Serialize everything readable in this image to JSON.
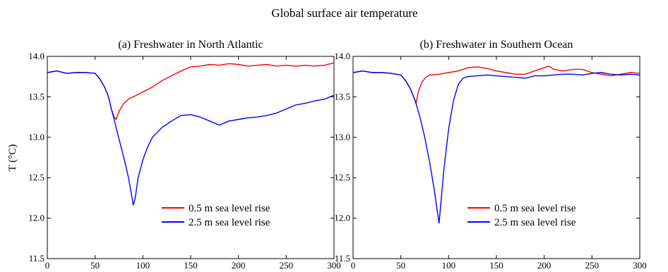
{
  "figure": {
    "title": "Global surface air temperature",
    "ylabel": "T (°C)"
  },
  "chart_data": [
    {
      "type": "line",
      "title": "(a) Freshwater in North Atlantic",
      "xlim": [
        0,
        300
      ],
      "ylim": [
        11.5,
        14.0
      ],
      "xticks": [
        0,
        50,
        100,
        150,
        200,
        250,
        300
      ],
      "yticks": [
        11.5,
        12.0,
        12.5,
        13.0,
        13.5,
        14.0
      ],
      "ytick_labels": [
        "11.5",
        "12.0",
        "12.5",
        "13.0",
        "13.5",
        "14.0"
      ],
      "legend_position": "lower-right",
      "series": [
        {
          "name": "0.5 m sea level rise",
          "color": "#ff0000",
          "points": [
            [
              0,
              13.8
            ],
            [
              10,
              13.82
            ],
            [
              20,
              13.79
            ],
            [
              30,
              13.8
            ],
            [
              40,
              13.8
            ],
            [
              50,
              13.79
            ],
            [
              55,
              13.72
            ],
            [
              60,
              13.62
            ],
            [
              64,
              13.5
            ],
            [
              67,
              13.35
            ],
            [
              70,
              13.25
            ],
            [
              72,
              13.22
            ],
            [
              75,
              13.32
            ],
            [
              80,
              13.42
            ],
            [
              85,
              13.47
            ],
            [
              90,
              13.5
            ],
            [
              95,
              13.53
            ],
            [
              100,
              13.56
            ],
            [
              110,
              13.62
            ],
            [
              120,
              13.7
            ],
            [
              130,
              13.76
            ],
            [
              140,
              13.82
            ],
            [
              150,
              13.87
            ],
            [
              160,
              13.88
            ],
            [
              170,
              13.9
            ],
            [
              180,
              13.89
            ],
            [
              190,
              13.91
            ],
            [
              200,
              13.9
            ],
            [
              210,
              13.88
            ],
            [
              220,
              13.89
            ],
            [
              230,
              13.9
            ],
            [
              240,
              13.88
            ],
            [
              250,
              13.89
            ],
            [
              260,
              13.88
            ],
            [
              270,
              13.89
            ],
            [
              280,
              13.88
            ],
            [
              290,
              13.89
            ],
            [
              300,
              13.92
            ]
          ]
        },
        {
          "name": "2.5 m sea level rise",
          "color": "#0000ff",
          "points": [
            [
              0,
              13.8
            ],
            [
              10,
              13.82
            ],
            [
              20,
              13.79
            ],
            [
              30,
              13.8
            ],
            [
              40,
              13.8
            ],
            [
              50,
              13.79
            ],
            [
              55,
              13.72
            ],
            [
              60,
              13.62
            ],
            [
              64,
              13.5
            ],
            [
              67,
              13.35
            ],
            [
              70,
              13.22
            ],
            [
              72,
              13.12
            ],
            [
              75,
              12.98
            ],
            [
              80,
              12.75
            ],
            [
              85,
              12.5
            ],
            [
              88,
              12.3
            ],
            [
              90,
              12.16
            ],
            [
              92,
              12.25
            ],
            [
              95,
              12.5
            ],
            [
              100,
              12.72
            ],
            [
              105,
              12.88
            ],
            [
              110,
              13.0
            ],
            [
              120,
              13.12
            ],
            [
              130,
              13.2
            ],
            [
              140,
              13.27
            ],
            [
              150,
              13.28
            ],
            [
              160,
              13.25
            ],
            [
              170,
              13.2
            ],
            [
              180,
              13.15
            ],
            [
              190,
              13.2
            ],
            [
              200,
              13.22
            ],
            [
              210,
              13.24
            ],
            [
              220,
              13.25
            ],
            [
              230,
              13.27
            ],
            [
              240,
              13.3
            ],
            [
              250,
              13.35
            ],
            [
              260,
              13.4
            ],
            [
              270,
              13.42
            ],
            [
              280,
              13.45
            ],
            [
              290,
              13.47
            ],
            [
              300,
              13.52
            ]
          ]
        }
      ]
    },
    {
      "type": "line",
      "title": "(b) Freshwater in Southern Ocean",
      "xlim": [
        0,
        300
      ],
      "ylim": [
        11.5,
        14.0
      ],
      "xticks": [
        0,
        50,
        100,
        150,
        200,
        250,
        300
      ],
      "yticks": [
        11.5,
        12.0,
        12.5,
        13.0,
        13.5,
        14.0
      ],
      "ytick_labels": [
        "11.5",
        "12.0",
        "12.5",
        "13.0",
        "13.5",
        "14.0"
      ],
      "legend_position": "lower-right",
      "series": [
        {
          "name": "0.5 m sea level rise",
          "color": "#ff0000",
          "points": [
            [
              0,
              13.8
            ],
            [
              10,
              13.82
            ],
            [
              20,
              13.8
            ],
            [
              30,
              13.8
            ],
            [
              40,
              13.79
            ],
            [
              50,
              13.77
            ],
            [
              55,
              13.7
            ],
            [
              60,
              13.6
            ],
            [
              64,
              13.48
            ],
            [
              66,
              13.42
            ],
            [
              68,
              13.55
            ],
            [
              72,
              13.68
            ],
            [
              76,
              13.74
            ],
            [
              80,
              13.77
            ],
            [
              90,
              13.78
            ],
            [
              100,
              13.8
            ],
            [
              110,
              13.82
            ],
            [
              120,
              13.86
            ],
            [
              130,
              13.87
            ],
            [
              140,
              13.85
            ],
            [
              150,
              13.82
            ],
            [
              160,
              13.8
            ],
            [
              170,
              13.78
            ],
            [
              180,
              13.78
            ],
            [
              190,
              13.82
            ],
            [
              200,
              13.86
            ],
            [
              205,
              13.88
            ],
            [
              210,
              13.84
            ],
            [
              220,
              13.82
            ],
            [
              230,
              13.84
            ],
            [
              240,
              13.84
            ],
            [
              250,
              13.8
            ],
            [
              260,
              13.78
            ],
            [
              270,
              13.76
            ],
            [
              280,
              13.78
            ],
            [
              290,
              13.8
            ],
            [
              300,
              13.79
            ]
          ]
        },
        {
          "name": "2.5 m sea level rise",
          "color": "#0000ff",
          "points": [
            [
              0,
              13.8
            ],
            [
              10,
              13.82
            ],
            [
              20,
              13.8
            ],
            [
              30,
              13.8
            ],
            [
              40,
              13.79
            ],
            [
              50,
              13.77
            ],
            [
              55,
              13.7
            ],
            [
              60,
              13.6
            ],
            [
              65,
              13.45
            ],
            [
              70,
              13.25
            ],
            [
              75,
              13.0
            ],
            [
              80,
              12.7
            ],
            [
              85,
              12.35
            ],
            [
              88,
              12.1
            ],
            [
              90,
              11.94
            ],
            [
              92,
              12.2
            ],
            [
              95,
              12.6
            ],
            [
              100,
              13.1
            ],
            [
              105,
              13.45
            ],
            [
              110,
              13.65
            ],
            [
              115,
              13.73
            ],
            [
              120,
              13.75
            ],
            [
              130,
              13.76
            ],
            [
              140,
              13.77
            ],
            [
              150,
              13.76
            ],
            [
              160,
              13.75
            ],
            [
              170,
              13.74
            ],
            [
              180,
              13.73
            ],
            [
              190,
              13.76
            ],
            [
              200,
              13.76
            ],
            [
              210,
              13.77
            ],
            [
              220,
              13.78
            ],
            [
              230,
              13.78
            ],
            [
              240,
              13.77
            ],
            [
              250,
              13.79
            ],
            [
              260,
              13.8
            ],
            [
              270,
              13.78
            ],
            [
              280,
              13.77
            ],
            [
              290,
              13.78
            ],
            [
              300,
              13.77
            ]
          ]
        }
      ]
    }
  ]
}
